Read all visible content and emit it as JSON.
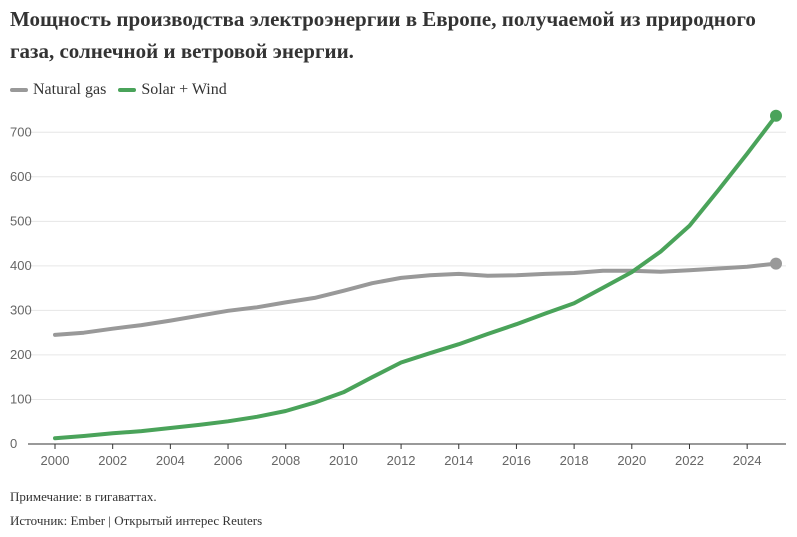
{
  "title": "Мощность производства электроэнергии в Европе, получаемой из природного газа, солнечной и ветровой энергии.",
  "note": "Примечание: в гигаваттах.",
  "source": "Источник: Ember | Открытый интерес Reuters",
  "colors": {
    "natural_gas": "#999999",
    "solar_wind": "#4aa35a"
  },
  "chart_data": {
    "type": "line",
    "title": "Мощность производства электроэнергии в Европе, получаемой из природного газа, солнечной и ветровой энергии.",
    "xlabel": "",
    "ylabel": "",
    "xlim": [
      2000,
      2025
    ],
    "ylim": [
      0,
      750
    ],
    "x_ticks": [
      2000,
      2002,
      2004,
      2006,
      2008,
      2010,
      2012,
      2014,
      2016,
      2018,
      2020,
      2022,
      2024
    ],
    "y_ticks": [
      0,
      100,
      200,
      300,
      400,
      500,
      600,
      700
    ],
    "grid": "horizontal",
    "legend": "top-left",
    "x": [
      2000,
      2001,
      2002,
      2003,
      2004,
      2005,
      2006,
      2007,
      2008,
      2009,
      2010,
      2011,
      2012,
      2013,
      2014,
      2015,
      2016,
      2017,
      2018,
      2019,
      2020,
      2021,
      2022,
      2023,
      2024,
      2025
    ],
    "series": [
      {
        "name": "Natural gas",
        "color": "#999999",
        "values": [
          245,
          250,
          259,
          267,
          277,
          288,
          299,
          307,
          318,
          328,
          344,
          361,
          373,
          379,
          382,
          378,
          379,
          382,
          384,
          389,
          389,
          387,
          390,
          394,
          398,
          405
        ]
      },
      {
        "name": "Solar + Wind",
        "color": "#4aa35a",
        "values": [
          13,
          18,
          24,
          29,
          36,
          43,
          51,
          61,
          74,
          93,
          116,
          150,
          183,
          204,
          224,
          247,
          269,
          293,
          316,
          351,
          386,
          432,
          490,
          570,
          652,
          737
        ]
      }
    ]
  }
}
